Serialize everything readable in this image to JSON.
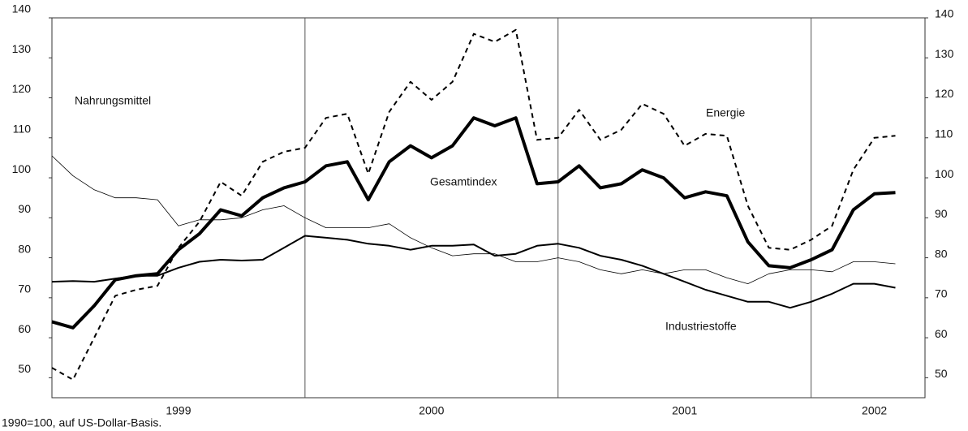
{
  "chart_data": {
    "type": "line",
    "x": [
      1999.0,
      1999.083,
      1999.167,
      1999.25,
      1999.333,
      1999.417,
      1999.5,
      1999.583,
      1999.667,
      1999.75,
      1999.833,
      1999.917,
      2000.0,
      2000.083,
      2000.167,
      2000.25,
      2000.333,
      2000.417,
      2000.5,
      2000.583,
      2000.667,
      2000.75,
      2000.833,
      2000.917,
      2001.0,
      2001.083,
      2001.167,
      2001.25,
      2001.333,
      2001.417,
      2001.5,
      2001.583,
      2001.667,
      2001.75,
      2001.833,
      2001.917,
      2002.0,
      2002.083,
      2002.167,
      2002.25,
      2002.333
    ],
    "xlim": [
      1999,
      2002.45
    ],
    "xticks": [
      {
        "value": 1999.5,
        "label": "1999"
      },
      {
        "value": 2000.5,
        "label": "2000"
      },
      {
        "value": 2001.5,
        "label": "2001"
      },
      {
        "value": 2002.25,
        "label": "2002"
      }
    ],
    "xgrid": [
      2000,
      2001,
      2002
    ],
    "ylim": [
      45,
      140
    ],
    "yticks": [
      50,
      60,
      70,
      80,
      90,
      100,
      110,
      120,
      130,
      140
    ],
    "y2lim": [
      45,
      140
    ],
    "y2ticks": [
      50,
      60,
      70,
      80,
      90,
      100,
      110,
      120,
      130,
      140
    ],
    "series": [
      {
        "name": "Gesamtindex",
        "color": "#000000",
        "line_width": 4,
        "dashed": false,
        "values": [
          64,
          62.5,
          68,
          74.5,
          75.5,
          76,
          82,
          86,
          92,
          90.5,
          95,
          97.5,
          99,
          103,
          104,
          94.5,
          104,
          108,
          105,
          108,
          115,
          113,
          115,
          98.5,
          99,
          103,
          97.5,
          98.5,
          102,
          100,
          95,
          96.5,
          95.5,
          84,
          78,
          77.5,
          79.5,
          82,
          92,
          96,
          96.3
        ]
      },
      {
        "name": "Energie",
        "color": "#000000",
        "line_width": 2,
        "dashed": true,
        "values": [
          52.5,
          49.5,
          60,
          70.5,
          72,
          73,
          82.5,
          89,
          99,
          95.5,
          104,
          106.5,
          107.5,
          115,
          116,
          101,
          116.5,
          124,
          119.5,
          124,
          136,
          134,
          137,
          109.5,
          110,
          117,
          109.5,
          112,
          118.5,
          116,
          108,
          111,
          110.5,
          93,
          82.5,
          82,
          84.5,
          88,
          102,
          110,
          110.5
        ]
      },
      {
        "name": "Nahrungsmittel",
        "color": "#000000",
        "line_width": 0.8,
        "dashed": false,
        "values": [
          105.5,
          100.5,
          97,
          95,
          95,
          94.5,
          88,
          89.5,
          89.5,
          90,
          92,
          93,
          90,
          87.5,
          87.5,
          87.5,
          88.5,
          85,
          82.5,
          80.5,
          81,
          81,
          79,
          79,
          80,
          79,
          77,
          76,
          77,
          76,
          77,
          77,
          75,
          73.5,
          76,
          77,
          77,
          76.5,
          79,
          79,
          78.5
        ]
      },
      {
        "name": "Industriestoffe",
        "color": "#000000",
        "line_width": 2,
        "dashed": false,
        "values": [
          74,
          74.2,
          74,
          74.8,
          75.5,
          75.5,
          77.5,
          79,
          79.5,
          79.3,
          79.5,
          82.5,
          85.5,
          85,
          84.5,
          83.5,
          83,
          82,
          83,
          83,
          83.3,
          80.5,
          81,
          83,
          83.5,
          82.5,
          80.5,
          79.5,
          78,
          76,
          74,
          72,
          70.5,
          69,
          69,
          67.5,
          69,
          71,
          73.5,
          73.5,
          72.5
        ]
      }
    ],
    "footnote": "1990=100, auf US-Dollar-Basis."
  }
}
